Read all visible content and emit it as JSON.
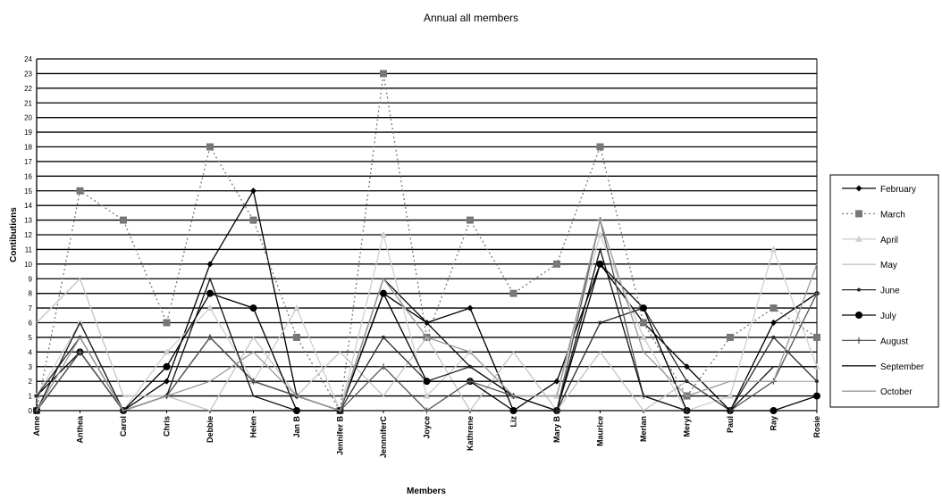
{
  "chart_data": {
    "type": "line",
    "title": "Annual all members",
    "xlabel": "Members",
    "ylabel": "Contibutions",
    "ylim": [
      0,
      24
    ],
    "y_ticks": [
      "0",
      "1",
      "2",
      "3",
      "4",
      "5",
      "6",
      "7",
      "8",
      "9",
      "10",
      "11",
      "12",
      "13",
      "14",
      "15",
      "16",
      "17",
      "18",
      "19",
      "20",
      "21",
      "22",
      "23",
      "24"
    ],
    "grid": "horizontal",
    "legend_position": "right",
    "categories": [
      "Anne",
      "Anthea",
      "Carol",
      "Chris",
      "Debbie",
      "Helen",
      "Jan B",
      "Jennifer B",
      "JennniferC",
      "Joyce",
      "Kathrene",
      "Liz",
      "Mary B",
      "Maurice",
      "Merlan",
      "Meryl",
      "Paul",
      "Ray",
      "Rosie"
    ],
    "series": [
      {
        "name": "February",
        "color": "#000000",
        "dash": "",
        "marker": "diamond",
        "values": [
          1,
          4,
          0,
          2,
          10,
          15,
          1,
          0,
          8,
          6,
          7,
          0,
          2,
          10,
          6,
          3,
          0,
          6,
          8
        ]
      },
      {
        "name": "March",
        "color": "#777777",
        "dash": "2,3",
        "marker": "square",
        "values": [
          0,
          15,
          13,
          6,
          18,
          13,
          5,
          0,
          23,
          5,
          13,
          8,
          10,
          18,
          6,
          1,
          5,
          7,
          5
        ]
      },
      {
        "name": "April",
        "color": "#cfcfcf",
        "dash": "",
        "marker": "triangle",
        "values": [
          1,
          6,
          0,
          4,
          7,
          2,
          7,
          0,
          12,
          1,
          4,
          1,
          1,
          12,
          5,
          0,
          1,
          11,
          3
        ]
      },
      {
        "name": "May",
        "color": "#c4c4c4",
        "dash": "",
        "marker": "none",
        "values": [
          6,
          9,
          1,
          1,
          0,
          5,
          1,
          4,
          1,
          5,
          0,
          4,
          0,
          4,
          0,
          2,
          2,
          2,
          2
        ]
      },
      {
        "name": "June",
        "color": "#2a2a2a",
        "dash": "",
        "marker": "dot",
        "values": [
          1,
          5,
          0,
          1,
          5,
          2,
          1,
          0,
          5,
          2,
          3,
          1,
          0,
          6,
          7,
          2,
          0,
          5,
          2
        ]
      },
      {
        "name": "July",
        "color": "#000000",
        "dash": "",
        "marker": "circle",
        "values": [
          0,
          4,
          0,
          3,
          8,
          7,
          0,
          0,
          8,
          2,
          2,
          0,
          0,
          10,
          7,
          0,
          0,
          0,
          1
        ]
      },
      {
        "name": "August",
        "color": "#555555",
        "dash": "",
        "marker": "plus",
        "values": [
          0,
          4,
          0,
          1,
          5,
          2,
          1,
          0,
          3,
          0,
          2,
          1,
          0,
          13,
          1,
          0,
          0,
          2,
          8
        ]
      },
      {
        "name": "September",
        "color": "#111111",
        "dash": "",
        "marker": "none",
        "values": [
          0,
          6,
          0,
          1,
          9,
          1,
          0,
          0,
          9,
          6,
          3,
          1,
          0,
          11,
          1,
          0,
          0,
          3,
          3
        ]
      },
      {
        "name": "October",
        "color": "#9a9a9a",
        "dash": "",
        "marker": "none",
        "values": [
          0,
          5,
          0,
          1,
          2,
          4,
          1,
          0,
          9,
          5,
          4,
          1,
          1,
          13,
          4,
          1,
          2,
          2,
          10
        ]
      }
    ]
  }
}
